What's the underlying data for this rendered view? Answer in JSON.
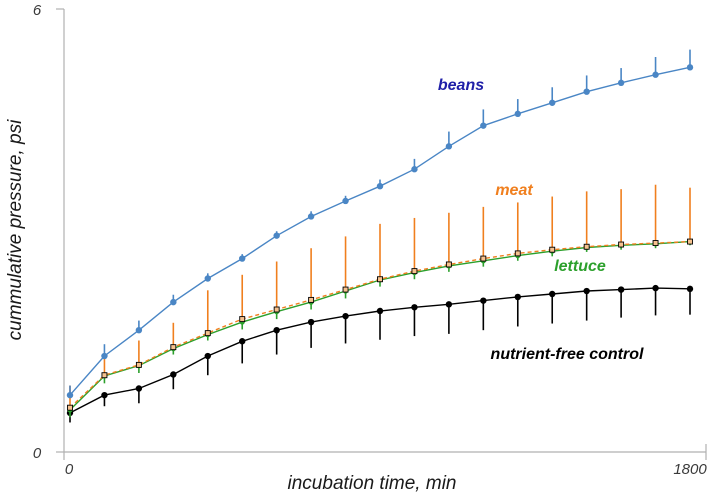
{
  "chart_data": {
    "type": "line",
    "xlabel": "incubation time, min",
    "ylabel": "cummulative pressure, psi",
    "xlim": [
      0,
      1800
    ],
    "ylim": [
      0,
      6
    ],
    "x_ticks": [
      "0",
      "1800"
    ],
    "y_ticks": [
      "6",
      "0"
    ],
    "grid": false,
    "legend": "inline labels",
    "x": [
      0,
      100,
      200,
      300,
      400,
      500,
      600,
      700,
      800,
      900,
      1000,
      1100,
      1200,
      1300,
      1400,
      1500,
      1600,
      1700,
      1800
    ],
    "series": [
      {
        "name": "beans",
        "color": "#4a86c5",
        "label_color": "#1f1fa8",
        "dashed": false,
        "values": [
          0.77,
          1.3,
          1.65,
          2.03,
          2.35,
          2.62,
          2.93,
          3.19,
          3.4,
          3.6,
          3.83,
          4.14,
          4.42,
          4.58,
          4.73,
          4.88,
          5.0,
          5.11,
          5.21
        ],
        "err": [
          0.13,
          0.16,
          0.13,
          0.1,
          0.07,
          0.06,
          0.06,
          0.07,
          0.07,
          0.09,
          0.14,
          0.2,
          0.22,
          0.2,
          0.21,
          0.22,
          0.2,
          0.24,
          0.24
        ]
      },
      {
        "name": "meat",
        "color": "#f07f1e",
        "label_color": "#f07f1e",
        "dashed": true,
        "values": [
          0.6,
          1.04,
          1.18,
          1.42,
          1.61,
          1.8,
          1.93,
          2.06,
          2.2,
          2.34,
          2.45,
          2.54,
          2.62,
          2.69,
          2.74,
          2.78,
          2.81,
          2.83,
          2.85
        ],
        "err": [
          0.3,
          0.3,
          0.33,
          0.33,
          0.58,
          0.6,
          0.65,
          0.7,
          0.72,
          0.75,
          0.72,
          0.7,
          0.7,
          0.69,
          0.72,
          0.75,
          0.75,
          0.79,
          0.73
        ]
      },
      {
        "name": "lettuce",
        "color": "#2ca02c",
        "label_color": "#2ca02c",
        "dashed": false,
        "values": [
          0.57,
          1.03,
          1.17,
          1.4,
          1.59,
          1.76,
          1.9,
          2.03,
          2.18,
          2.33,
          2.43,
          2.52,
          2.59,
          2.66,
          2.72,
          2.77,
          2.8,
          2.82,
          2.85
        ],
        "err": [
          0.1,
          0.1,
          0.1,
          0.08,
          0.08,
          0.1,
          0.1,
          0.1,
          0.1,
          0.09,
          0.09,
          0.08,
          0.08,
          0.07,
          0.07,
          0.06,
          0.06,
          0.06,
          0.05
        ]
      },
      {
        "name": "nutrient-free control",
        "color": "#000000",
        "label_color": "#000000",
        "dashed": false,
        "values": [
          0.53,
          0.77,
          0.86,
          1.05,
          1.3,
          1.5,
          1.65,
          1.76,
          1.84,
          1.91,
          1.96,
          2.0,
          2.05,
          2.1,
          2.14,
          2.18,
          2.2,
          2.22,
          2.21
        ],
        "err": [
          0.13,
          0.15,
          0.2,
          0.2,
          0.26,
          0.3,
          0.33,
          0.35,
          0.37,
          0.39,
          0.39,
          0.4,
          0.4,
          0.4,
          0.4,
          0.4,
          0.38,
          0.37,
          0.35
        ]
      }
    ]
  }
}
